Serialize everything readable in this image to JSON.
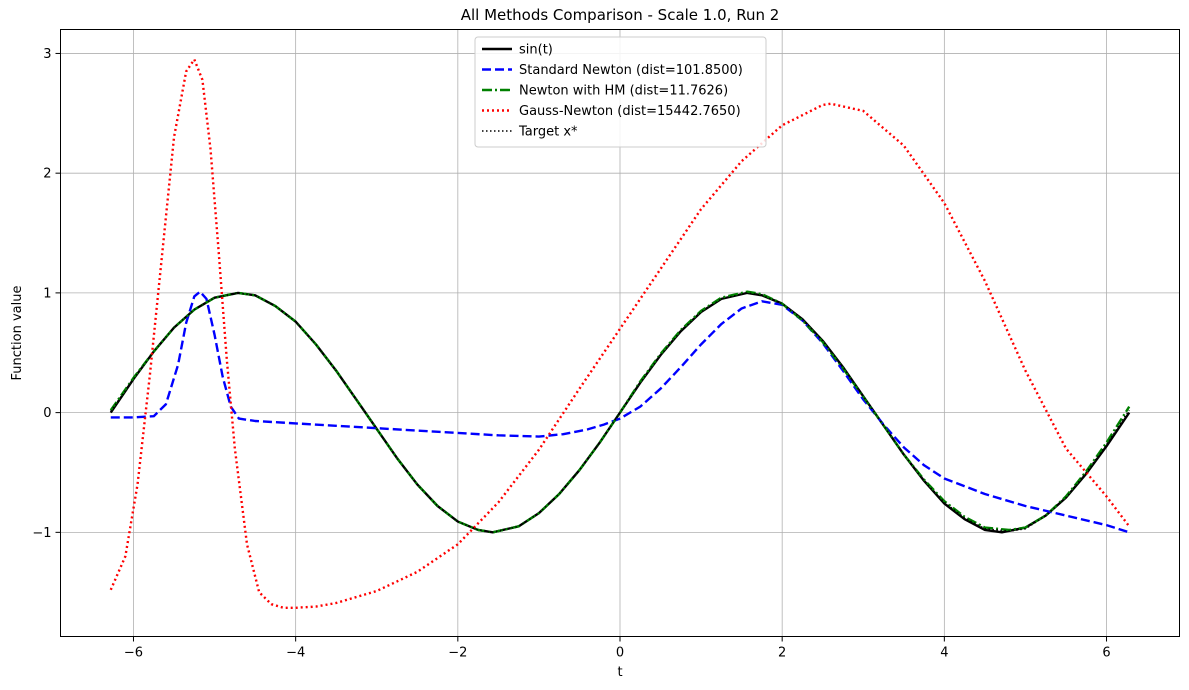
{
  "chart_data": {
    "type": "line",
    "title": "All Methods Comparison - Scale 1.0, Run 2",
    "xlabel": "t",
    "ylabel": "Function value",
    "xlim": [
      -6.9,
      6.9
    ],
    "ylim": [
      -1.87,
      3.2
    ],
    "xticks": [
      -6,
      -4,
      -2,
      0,
      2,
      4,
      6
    ],
    "yticks": [
      -1,
      0,
      1,
      2,
      3
    ],
    "xtick_labels": [
      "−6",
      "−4",
      "−2",
      "0",
      "2",
      "4",
      "6"
    ],
    "ytick_labels": [
      "−1",
      "0",
      "1",
      "2",
      "3"
    ],
    "grid": true,
    "legend_position": "top-center",
    "series": [
      {
        "name": "sin(t)",
        "color": "#000000",
        "style": "solid",
        "width": 2.4,
        "x": [
          -6.28,
          -6.0,
          -5.75,
          -5.5,
          -5.25,
          -5.0,
          -4.71,
          -4.5,
          -4.25,
          -4.0,
          -3.75,
          -3.5,
          -3.14,
          -2.75,
          -2.5,
          -2.25,
          -2.0,
          -1.75,
          -1.57,
          -1.25,
          -1.0,
          -0.75,
          -0.5,
          -0.25,
          0.0,
          0.25,
          0.5,
          0.75,
          1.0,
          1.25,
          1.57,
          1.75,
          2.0,
          2.25,
          2.5,
          2.75,
          3.14,
          3.5,
          3.75,
          4.0,
          4.25,
          4.5,
          4.71,
          5.0,
          5.25,
          5.5,
          5.75,
          6.0,
          6.28
        ],
        "y": [
          0.0,
          0.28,
          0.51,
          0.71,
          0.86,
          0.96,
          1.0,
          0.98,
          0.89,
          0.76,
          0.57,
          0.35,
          0.0,
          -0.38,
          -0.6,
          -0.78,
          -0.91,
          -0.98,
          -1.0,
          -0.95,
          -0.84,
          -0.68,
          -0.48,
          -0.25,
          0.0,
          0.25,
          0.48,
          0.68,
          0.84,
          0.95,
          1.0,
          0.98,
          0.91,
          0.78,
          0.6,
          0.38,
          0.0,
          -0.35,
          -0.57,
          -0.76,
          -0.89,
          -0.98,
          -1.0,
          -0.96,
          -0.86,
          -0.71,
          -0.51,
          -0.28,
          0.0
        ]
      },
      {
        "name": "Standard Newton (dist=101.8500)",
        "color": "#0000ff",
        "style": "dashed",
        "width": 2.4,
        "x": [
          -6.28,
          -6.0,
          -5.75,
          -5.6,
          -5.45,
          -5.35,
          -5.25,
          -5.18,
          -5.1,
          -5.0,
          -4.9,
          -4.8,
          -4.7,
          -4.5,
          -4.0,
          -3.5,
          -3.0,
          -2.5,
          -2.0,
          -1.5,
          -1.0,
          -0.7,
          -0.4,
          -0.2,
          0.0,
          0.25,
          0.5,
          0.75,
          1.0,
          1.25,
          1.5,
          1.75,
          2.0,
          2.25,
          2.5,
          2.75,
          3.0,
          3.25,
          3.5,
          3.75,
          4.0,
          4.5,
          5.0,
          5.5,
          6.0,
          6.28
        ],
        "y": [
          -0.04,
          -0.04,
          -0.03,
          0.07,
          0.4,
          0.75,
          0.97,
          1.01,
          0.95,
          0.65,
          0.3,
          0.05,
          -0.05,
          -0.07,
          -0.09,
          -0.11,
          -0.13,
          -0.15,
          -0.17,
          -0.19,
          -0.2,
          -0.18,
          -0.14,
          -0.1,
          -0.05,
          0.05,
          0.2,
          0.38,
          0.57,
          0.74,
          0.87,
          0.93,
          0.9,
          0.77,
          0.58,
          0.35,
          0.11,
          -0.1,
          -0.29,
          -0.44,
          -0.55,
          -0.68,
          -0.78,
          -0.86,
          -0.94,
          -1.0
        ]
      },
      {
        "name": "Newton with HM (dist=11.7626)",
        "color": "#008000",
        "style": "dashdot",
        "width": 2.4,
        "x": [
          -6.28,
          -6.0,
          -5.75,
          -5.5,
          -5.25,
          -5.0,
          -4.71,
          -4.5,
          -4.25,
          -4.0,
          -3.75,
          -3.5,
          -3.14,
          -2.75,
          -2.5,
          -2.25,
          -2.0,
          -1.75,
          -1.57,
          -1.25,
          -1.0,
          -0.75,
          -0.5,
          -0.25,
          0.0,
          0.25,
          0.5,
          0.75,
          1.0,
          1.25,
          1.57,
          1.75,
          2.0,
          2.25,
          2.5,
          2.75,
          3.14,
          3.5,
          3.75,
          4.0,
          4.25,
          4.5,
          4.8,
          5.0,
          5.25,
          5.5,
          5.75,
          6.0,
          6.28
        ],
        "y": [
          0.02,
          0.29,
          0.51,
          0.71,
          0.86,
          0.96,
          1.0,
          0.98,
          0.89,
          0.76,
          0.57,
          0.35,
          0.0,
          -0.38,
          -0.6,
          -0.78,
          -0.91,
          -0.98,
          -1.0,
          -0.95,
          -0.84,
          -0.68,
          -0.48,
          -0.25,
          0.0,
          0.26,
          0.49,
          0.69,
          0.85,
          0.96,
          1.01,
          0.99,
          0.91,
          0.77,
          0.59,
          0.37,
          0.0,
          -0.35,
          -0.56,
          -0.74,
          -0.87,
          -0.96,
          -0.98,
          -0.96,
          -0.86,
          -0.7,
          -0.49,
          -0.25,
          0.05
        ]
      },
      {
        "name": "Gauss-Newton (dist=15442.7650)",
        "color": "#ff0000",
        "style": "dotted",
        "width": 2.4,
        "x": [
          -6.28,
          -6.1,
          -5.95,
          -5.8,
          -5.65,
          -5.5,
          -5.35,
          -5.25,
          -5.15,
          -5.05,
          -4.95,
          -4.85,
          -4.75,
          -4.6,
          -4.45,
          -4.3,
          -4.15,
          -4.0,
          -3.75,
          -3.5,
          -3.0,
          -2.5,
          -2.0,
          -1.5,
          -1.0,
          -0.5,
          0.0,
          0.5,
          1.0,
          1.5,
          2.0,
          2.5,
          2.6,
          3.0,
          3.5,
          4.0,
          4.5,
          5.0,
          5.5,
          6.0,
          6.28
        ],
        "y": [
          -1.48,
          -1.2,
          -0.6,
          0.3,
          1.3,
          2.3,
          2.85,
          2.95,
          2.78,
          2.2,
          1.35,
          0.45,
          -0.3,
          -1.1,
          -1.5,
          -1.6,
          -1.63,
          -1.63,
          -1.62,
          -1.59,
          -1.49,
          -1.33,
          -1.1,
          -0.75,
          -0.31,
          0.2,
          0.7,
          1.2,
          1.7,
          2.1,
          2.4,
          2.57,
          2.58,
          2.52,
          2.23,
          1.75,
          1.1,
          0.35,
          -0.3,
          -0.7,
          -0.95
        ]
      },
      {
        "name": "Target x*",
        "color": "#000000",
        "style": "dotted",
        "width": 1.6,
        "x": [
          -6.28,
          -6.0,
          -5.75,
          -5.5,
          -5.25,
          -5.0,
          -4.71,
          -4.5,
          -4.25,
          -4.0,
          -3.75,
          -3.5,
          -3.14,
          -2.75,
          -2.5,
          -2.25,
          -2.0,
          -1.75,
          -1.57,
          -1.25,
          -1.0,
          -0.75,
          -0.5,
          -0.25,
          0.0,
          0.25,
          0.5,
          0.75,
          1.0,
          1.25,
          1.57,
          1.75,
          2.0,
          2.25,
          2.5,
          2.75,
          3.14,
          3.5,
          3.75,
          4.0,
          4.25,
          4.5,
          4.8,
          5.0,
          5.25,
          5.5,
          5.75,
          6.0,
          6.28
        ],
        "y": [
          0.01,
          0.28,
          0.51,
          0.71,
          0.86,
          0.96,
          1.0,
          0.98,
          0.89,
          0.76,
          0.57,
          0.35,
          0.0,
          -0.38,
          -0.6,
          -0.78,
          -0.91,
          -0.98,
          -1.0,
          -0.95,
          -0.84,
          -0.68,
          -0.48,
          -0.25,
          0.0,
          0.25,
          0.48,
          0.68,
          0.84,
          0.95,
          1.0,
          0.98,
          0.91,
          0.78,
          0.6,
          0.38,
          0.0,
          -0.35,
          -0.57,
          -0.75,
          -0.88,
          -0.97,
          -0.99,
          -0.97,
          -0.86,
          -0.71,
          -0.5,
          -0.27,
          0.02
        ]
      }
    ]
  }
}
